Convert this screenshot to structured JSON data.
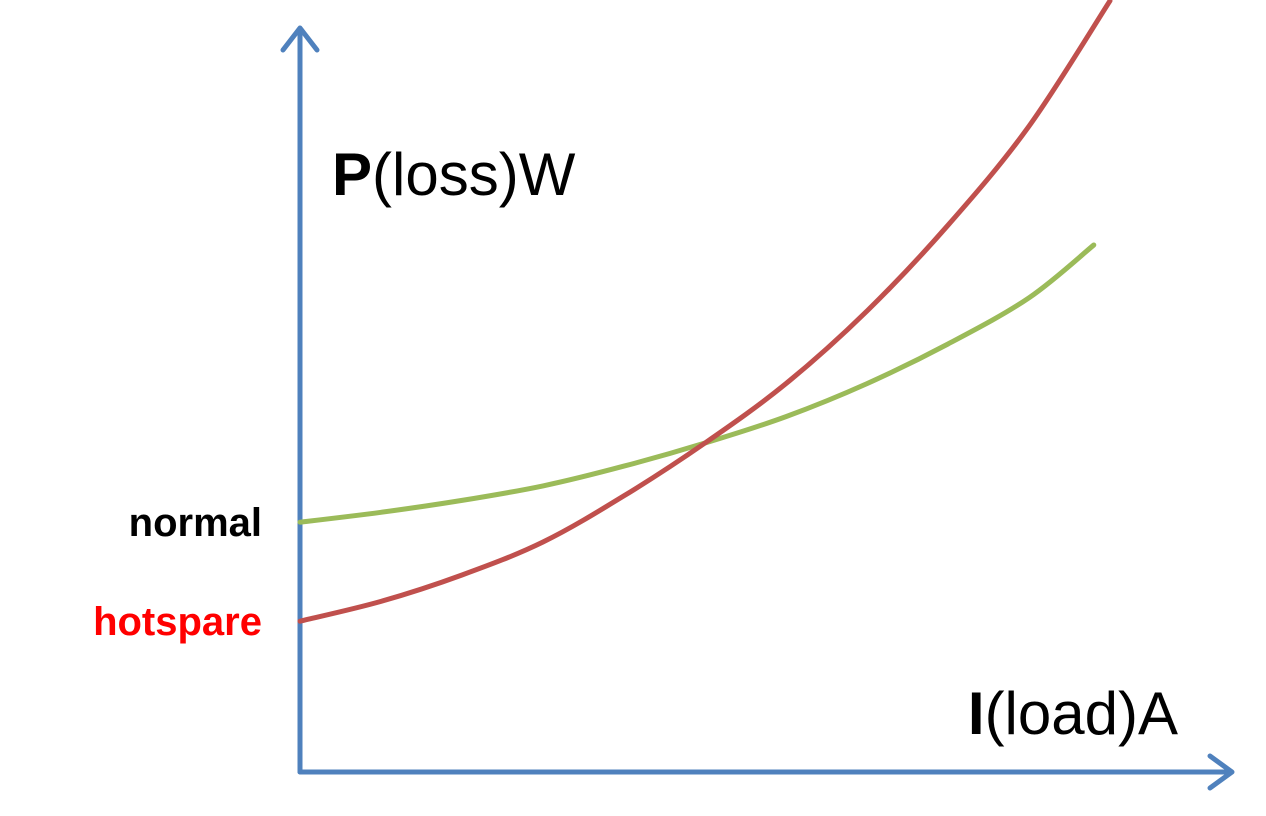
{
  "chart_data": {
    "type": "line",
    "title": "",
    "ylabel": {
      "symbol": "P",
      "rest": "(loss)W"
    },
    "xlabel": {
      "symbol": "I",
      "rest": "(load)A"
    },
    "x_range": [
      0,
      1
    ],
    "y_range": [
      0,
      1
    ],
    "grid": false,
    "legend": "none",
    "series": [
      {
        "name": "normal",
        "color": "#9bbb59",
        "label_color": "#000000",
        "x": [
          0.0,
          0.1,
          0.2,
          0.3,
          0.4,
          0.5,
          0.6,
          0.7,
          0.8,
          0.9,
          0.98
        ],
        "y": [
          0.33,
          0.345,
          0.363,
          0.385,
          0.415,
          0.45,
          0.49,
          0.54,
          0.6,
          0.67,
          0.75
        ]
      },
      {
        "name": "hotspare",
        "color": "#c0504d",
        "label_color": "#ff0000",
        "x": [
          0.0,
          0.1,
          0.2,
          0.3,
          0.4,
          0.5,
          0.6,
          0.7,
          0.8,
          0.9,
          1.0
        ],
        "y": [
          0.18,
          0.21,
          0.25,
          0.3,
          0.37,
          0.45,
          0.54,
          0.65,
          0.78,
          0.93,
          1.12
        ]
      }
    ]
  }
}
